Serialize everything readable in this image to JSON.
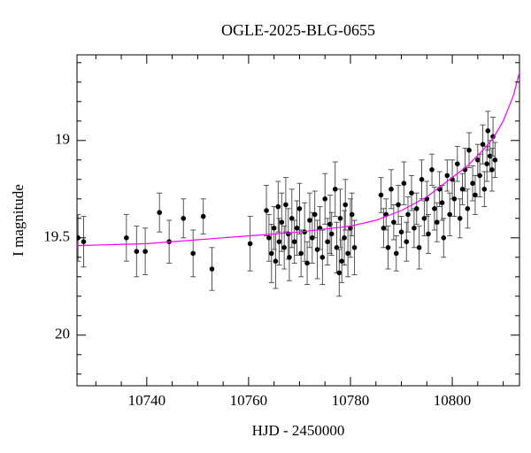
{
  "chart_data": {
    "type": "scatter",
    "title": "OGLE-2025-BLG-0655",
    "x_label": "HJD - 2450000",
    "y_label": "I magnitude",
    "xlim": [
      10726.3,
      10813.2
    ],
    "ylim": [
      20.26,
      18.56
    ],
    "xticks": [
      10740,
      10760,
      10780,
      10800
    ],
    "yticks": [
      19,
      19.5,
      20
    ],
    "xticks_minor": [
      10730,
      10735,
      10745,
      10750,
      10755,
      10765,
      10770,
      10775,
      10785,
      10790,
      10795,
      10805,
      10810
    ],
    "yticks_minor": [
      18.6,
      18.7,
      18.8,
      18.9,
      19.1,
      19.2,
      19.3,
      19.4,
      19.6,
      19.7,
      19.8,
      19.9,
      20.1,
      20.2
    ],
    "series": [
      {
        "type": "scatter",
        "color": "#000000",
        "x": [
          10726.5,
          10727.6,
          10736,
          10738,
          10739.7,
          10742.5,
          10744.4,
          10747.2,
          10749.1,
          10751.1,
          10752.8,
          10760.3,
          10763.5,
          10764,
          10764.5,
          10765,
          10765.3,
          10765.8,
          10766,
          10766.5,
          10767,
          10767.3,
          10767.8,
          10768,
          10768.5,
          10769,
          10769.5,
          10770,
          10770.3,
          10771,
          10771.5,
          10772,
          10772.5,
          10773,
          10773.5,
          10774,
          10774.5,
          10775,
          10775.5,
          10776,
          10776.3,
          10777,
          10777.3,
          10777.8,
          10778,
          10778.3,
          10778.8,
          10779,
          10779.5,
          10780,
          10780.3,
          10780.8,
          10786,
          10786.5,
          10787,
          10787.4,
          10788,
          10788.5,
          10789,
          10789.4,
          10790,
          10790.5,
          10791,
          10791.3,
          10792,
          10792.5,
          10793,
          10793.5,
          10794,
          10794.5,
          10795,
          10795.3,
          10796,
          10796.5,
          10797,
          10797.5,
          10798,
          10798.3,
          10799,
          10799.5,
          10800,
          10800.4,
          10801,
          10801.5,
          10802,
          10802.5,
          10803,
          10803.3,
          10804,
          10804.5,
          10805,
          10805.4,
          10806,
          10806.3,
          10806.8,
          10807,
          10807.4,
          10807.8,
          10808,
          10808.4
        ],
        "values": [
          19.5,
          19.52,
          19.5,
          19.57,
          19.57,
          19.37,
          19.52,
          19.4,
          19.58,
          19.39,
          19.66,
          19.53,
          19.36,
          19.5,
          19.58,
          19.45,
          19.62,
          19.34,
          19.52,
          19.42,
          19.55,
          19.33,
          19.48,
          19.6,
          19.4,
          19.52,
          19.45,
          19.35,
          19.58,
          19.47,
          19.63,
          19.41,
          19.5,
          19.38,
          19.56,
          19.45,
          19.6,
          19.3,
          19.52,
          19.43,
          19.48,
          19.25,
          19.55,
          19.68,
          19.4,
          19.62,
          19.5,
          19.33,
          19.58,
          19.45,
          19.38,
          19.55,
          19.28,
          19.45,
          19.38,
          19.55,
          19.25,
          19.42,
          19.58,
          19.33,
          19.47,
          19.22,
          19.52,
          19.38,
          19.27,
          19.45,
          19.35,
          19.55,
          19.2,
          19.4,
          19.3,
          19.48,
          19.15,
          19.35,
          19.42,
          19.25,
          19.32,
          19.5,
          19.18,
          19.38,
          19.2,
          19.3,
          19.12,
          19.4,
          19.25,
          19.15,
          19.35,
          19.05,
          19.22,
          19.28,
          19.1,
          19.18,
          19.02,
          19.25,
          19.12,
          18.95,
          19.08,
          19.15,
          18.98,
          19.1
        ],
        "errors": [
          0.12,
          0.13,
          0.12,
          0.13,
          0.12,
          0.1,
          0.11,
          0.1,
          0.12,
          0.09,
          0.11,
          0.14,
          0.13,
          0.12,
          0.15,
          0.11,
          0.14,
          0.13,
          0.12,
          0.15,
          0.11,
          0.14,
          0.13,
          0.12,
          0.15,
          0.11,
          0.14,
          0.13,
          0.12,
          0.15,
          0.11,
          0.14,
          0.13,
          0.12,
          0.15,
          0.11,
          0.14,
          0.13,
          0.12,
          0.15,
          0.11,
          0.14,
          0.13,
          0.12,
          0.15,
          0.11,
          0.14,
          0.13,
          0.12,
          0.15,
          0.11,
          0.14,
          0.09,
          0.1,
          0.08,
          0.11,
          0.1,
          0.09,
          0.09,
          0.1,
          0.08,
          0.11,
          0.1,
          0.09,
          0.09,
          0.1,
          0.08,
          0.11,
          0.1,
          0.09,
          0.09,
          0.1,
          0.08,
          0.11,
          0.1,
          0.09,
          0.09,
          0.1,
          0.08,
          0.11,
          0.1,
          0.09,
          0.09,
          0.1,
          0.08,
          0.11,
          0.1,
          0.09,
          0.09,
          0.1,
          0.08,
          0.11,
          0.1,
          0.09,
          0.09,
          0.1,
          0.08,
          0.11,
          0.1,
          0.09
        ]
      },
      {
        "type": "line",
        "color": "#ff00ff",
        "x": [
          10726.3,
          10740,
          10750,
          10760,
          10770,
          10780,
          10785,
          10790,
          10795,
          10800,
          10803,
          10806,
          10808,
          10810,
          10812,
          10813.2
        ],
        "values": [
          19.54,
          19.53,
          19.51,
          19.49,
          19.47,
          19.44,
          19.41,
          19.36,
          19.29,
          19.19,
          19.13,
          19.05,
          18.99,
          18.9,
          18.77,
          18.65
        ]
      }
    ]
  }
}
